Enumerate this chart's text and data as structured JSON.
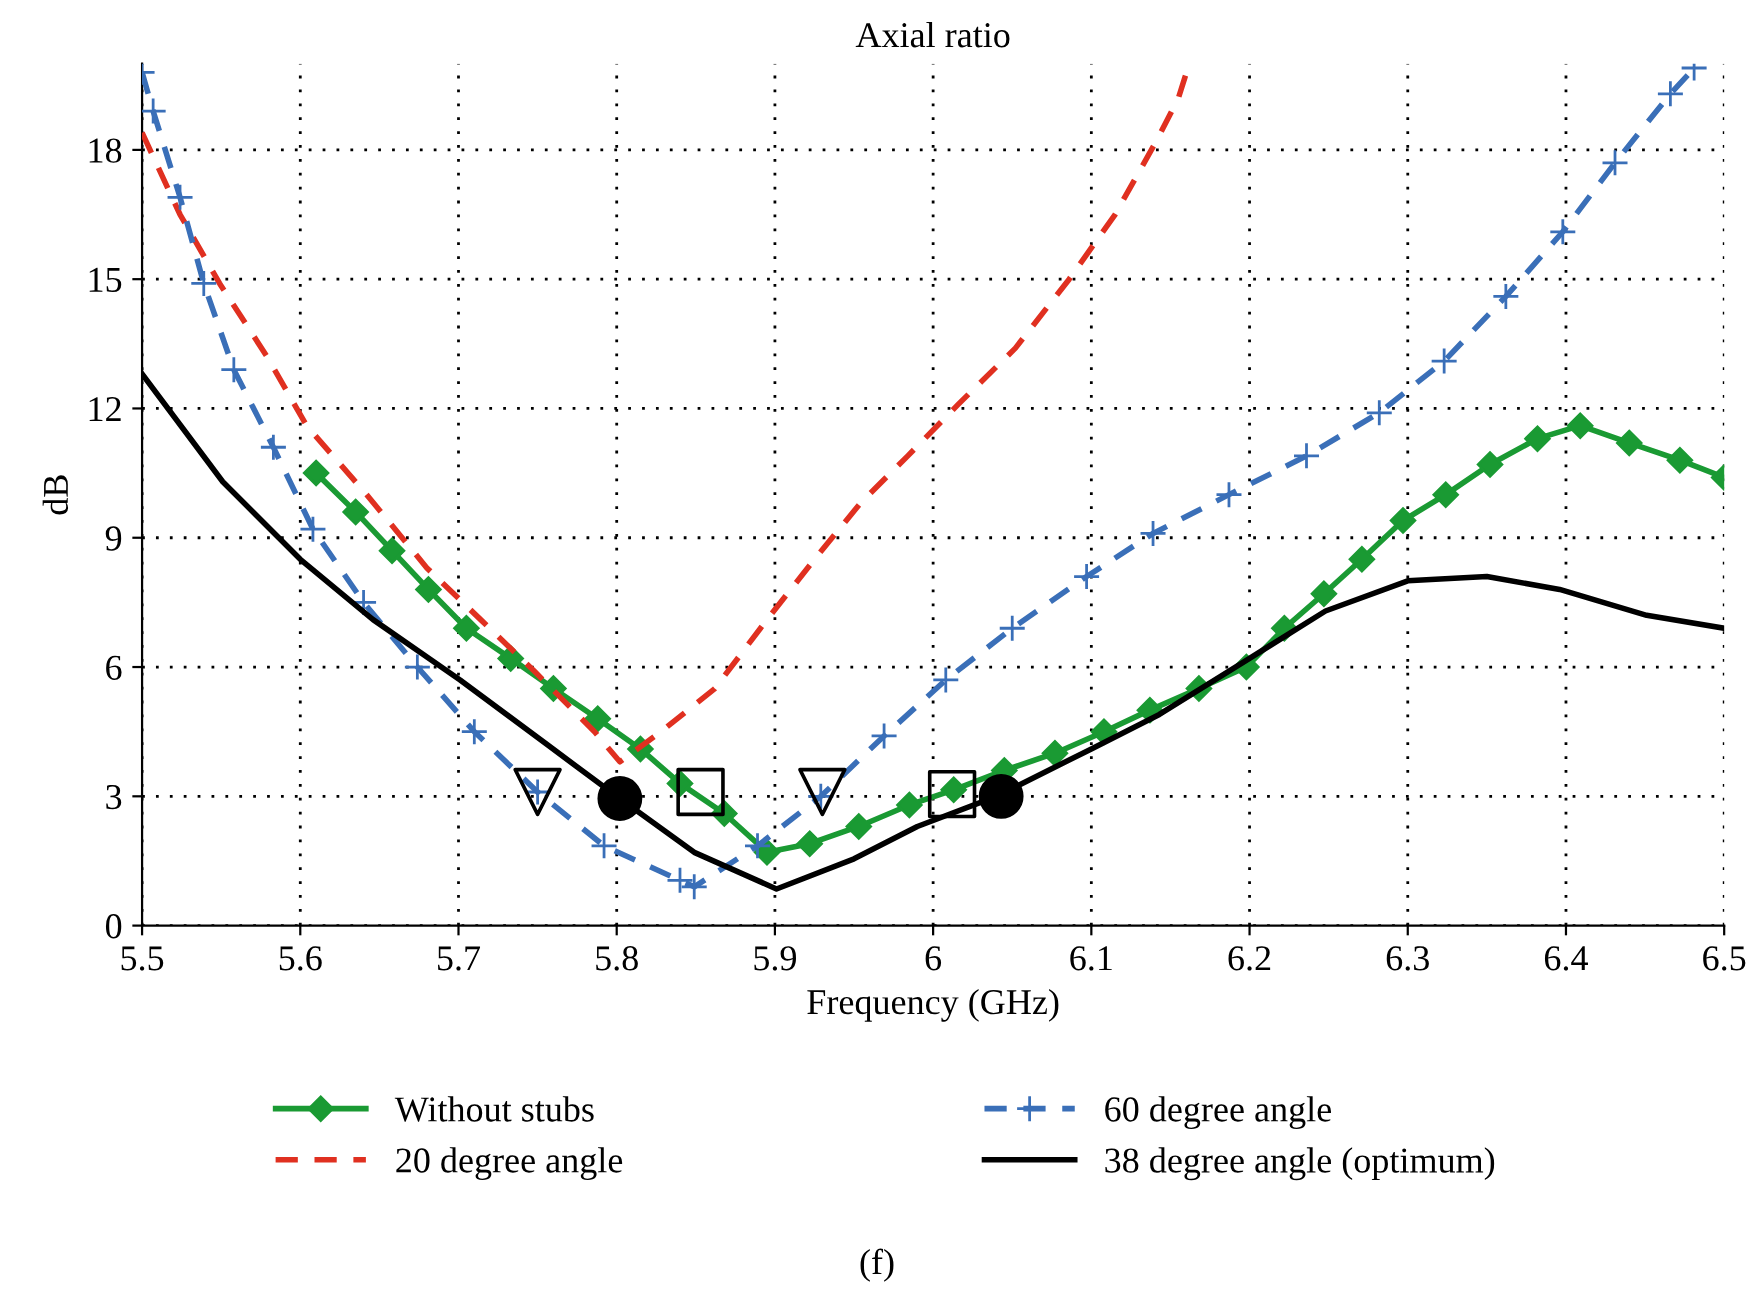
{
  "chart_data": {
    "type": "line",
    "title": "Axial ratio",
    "xlabel": "Frequency (GHz)",
    "ylabel": "dB",
    "annotations": [
      "(f)"
    ],
    "xlim": [
      5.5,
      6.5
    ],
    "xticks": [
      5.5,
      5.6,
      5.7,
      5.8,
      5.9,
      6,
      6.1,
      6.2,
      6.3,
      6.4,
      6.5
    ],
    "ylim": [
      0,
      20
    ],
    "yticks": [
      0,
      3,
      6,
      9,
      12,
      15,
      18
    ],
    "grid": true,
    "legend": "bottom",
    "series": [
      {
        "name": "Without stubs",
        "color": "#1a9a33",
        "marker": "diamond",
        "line_style": "solid",
        "x": [
          5.61,
          5.635,
          5.658,
          5.681,
          5.705,
          5.733,
          5.76,
          5.788,
          5.815,
          5.84,
          5.868,
          5.895,
          5.922,
          5.953,
          5.985,
          6.013,
          6.045,
          6.077,
          6.108,
          6.137,
          6.168,
          6.198,
          6.222,
          6.247,
          6.271,
          6.297,
          6.324,
          6.352,
          6.382,
          6.409,
          6.44,
          6.472,
          6.5
        ],
        "values": [
          10.5,
          9.6,
          8.7,
          7.8,
          6.9,
          6.2,
          5.5,
          4.8,
          4.1,
          3.3,
          2.6,
          1.7,
          1.9,
          2.3,
          2.8,
          3.15,
          3.6,
          4.0,
          4.5,
          5.0,
          5.5,
          6.0,
          6.9,
          7.7,
          8.5,
          9.4,
          10.0,
          10.7,
          11.3,
          11.6,
          11.2,
          10.8,
          10.4
        ]
      },
      {
        "name": "20 degree angle",
        "color": "#e03020",
        "marker": "none",
        "line_style": "dashed",
        "x": [
          5.5,
          5.524,
          5.549,
          5.579,
          5.604,
          5.642,
          5.68,
          5.714,
          5.748,
          5.786,
          5.802,
          5.828,
          5.862,
          5.895,
          5.925,
          5.954,
          5.984,
          6.016,
          6.052,
          6.086,
          6.115,
          6.141,
          6.155,
          6.161
        ],
        "values": [
          18.4,
          16.5,
          14.9,
          13.2,
          11.6,
          10.0,
          8.3,
          7.1,
          5.9,
          4.5,
          3.8,
          4.5,
          5.5,
          7.1,
          8.5,
          9.8,
          10.9,
          12.1,
          13.4,
          15.0,
          16.5,
          18.2,
          19.2,
          19.9
        ]
      },
      {
        "name": "60 degree angle",
        "color": "#3a6fb8",
        "marker": "cross",
        "line_style": "dashed",
        "x": [
          5.5,
          5.507,
          5.524,
          5.539,
          5.558,
          5.583,
          5.608,
          5.64,
          5.674,
          5.71,
          5.75,
          5.792,
          5.84,
          5.849,
          5.889,
          5.929,
          5.969,
          6.008,
          6.05,
          6.097,
          6.139,
          6.187,
          6.236,
          6.282,
          6.323,
          6.362,
          6.398,
          6.431,
          6.466,
          6.481
        ],
        "values": [
          19.8,
          18.9,
          16.9,
          14.9,
          12.9,
          11.1,
          9.2,
          7.5,
          6.0,
          4.5,
          3.1,
          1.85,
          1.05,
          0.9,
          1.85,
          3.0,
          4.4,
          5.7,
          6.9,
          8.1,
          9.1,
          10.0,
          10.9,
          11.9,
          13.1,
          14.6,
          16.1,
          17.7,
          19.3,
          19.9
        ]
      },
      {
        "name": "38 degree angle (optimum)",
        "color": "#000000",
        "marker": "none",
        "line_style": "solid",
        "x": [
          5.5,
          5.551,
          5.6,
          5.646,
          5.701,
          5.756,
          5.8,
          5.849,
          5.901,
          5.95,
          5.99,
          6.04,
          6.1,
          6.143,
          6.2,
          6.248,
          6.3,
          6.35,
          6.396,
          6.451,
          6.5
        ],
        "values": [
          12.8,
          10.3,
          8.5,
          7.1,
          5.7,
          4.2,
          3.0,
          1.7,
          0.85,
          1.55,
          2.3,
          3.0,
          4.1,
          4.9,
          6.2,
          7.3,
          8.0,
          8.1,
          7.8,
          7.2,
          6.9
        ]
      },
      {
        "type": "scatter",
        "color": "#000000",
        "marker": "triangle",
        "x": [
          5.75,
          5.93
        ],
        "values": [
          3.1,
          3.1
        ]
      },
      {
        "type": "scatter",
        "color": "#000000",
        "marker": "square",
        "x": [
          5.853,
          6.012
        ],
        "values": [
          3.1,
          3.05
        ]
      },
      {
        "type": "scatter",
        "color": "#000000",
        "marker": "circle",
        "x": [
          5.802,
          6.043
        ],
        "values": [
          2.95,
          3.0
        ]
      }
    ]
  }
}
